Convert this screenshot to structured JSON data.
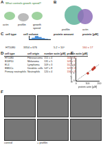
{
  "panels": {
    "A": {
      "label": "A",
      "title": "What controls growth speed?",
      "texts": [
        "actin",
        "profilin",
        "growth speed"
      ]
    },
    "B": {
      "label": "B",
      "texts": [
        "profilin",
        "actin"
      ]
    },
    "C": {
      "label": "C",
      "headers": [
        "cell type",
        "cell volume",
        "protein amount",
        "protein [µM]"
      ],
      "row": [
        "HT1080",
        "3354 ± 676",
        "5.2 × 10⁸",
        "160 ± 17"
      ]
    },
    "D": {
      "label": "D",
      "headers": [
        "cell type",
        "cell origin",
        "number actin [µM]",
        "protein actin [µM]"
      ],
      "rows": [
        [
          "HT1080",
          "Fibrosarcoma",
          "151 ± 4",
          "160 ± 17"
        ],
        [
          "B16F10",
          "Melanoma",
          "131 ± 5",
          "143 ± 17"
        ],
        [
          "EL4",
          "Lymphoma",
          "109 ± 3",
          "102 ± 17"
        ],
        [
          "BMDCs",
          "Dendritic cells",
          "147 ± 8",
          "147 ± 19"
        ],
        [
          "Primary neutrophils",
          "Neutrophils",
          "120 ± 4",
          "158 ± 25"
        ]
      ]
    },
    "E": {
      "label": "E"
    },
    "F": {
      "label": "F",
      "captions": [
        "control",
        "+ profilin"
      ]
    }
  },
  "chart_data": [
    {
      "type": "scatter",
      "x_label": "protein actin [µM]",
      "y_label": "growth velocity [µm/min]",
      "xlim": [
        0,
        200
      ],
      "xticks": [
        0,
        100,
        200
      ],
      "ylim": [
        0,
        3
      ],
      "yticks": [
        0,
        1,
        2,
        3
      ],
      "grid": false,
      "series": [
        {
          "color": "#c0392b",
          "marker": "circle",
          "x": [
            102,
            143,
            147,
            158,
            160
          ],
          "values": [
            1.0,
            1.5,
            1.6,
            1.7,
            1.8
          ]
        },
        {
          "type": "line",
          "color": "#888888",
          "line_style": "dashed",
          "x": [
            0,
            200
          ],
          "values": [
            0,
            2.2
          ]
        }
      ]
    },
    {
      "type": "histogram",
      "bins": [
        0,
        1000,
        2000,
        3000,
        4000,
        5000,
        6000,
        7000
      ],
      "counts": [
        1,
        4,
        9,
        6,
        3,
        1,
        0
      ],
      "color": "#4a90d9",
      "xlim": [
        0,
        7000
      ],
      "ylim": [
        0,
        10
      ],
      "tick_labels": false
    }
  ]
}
